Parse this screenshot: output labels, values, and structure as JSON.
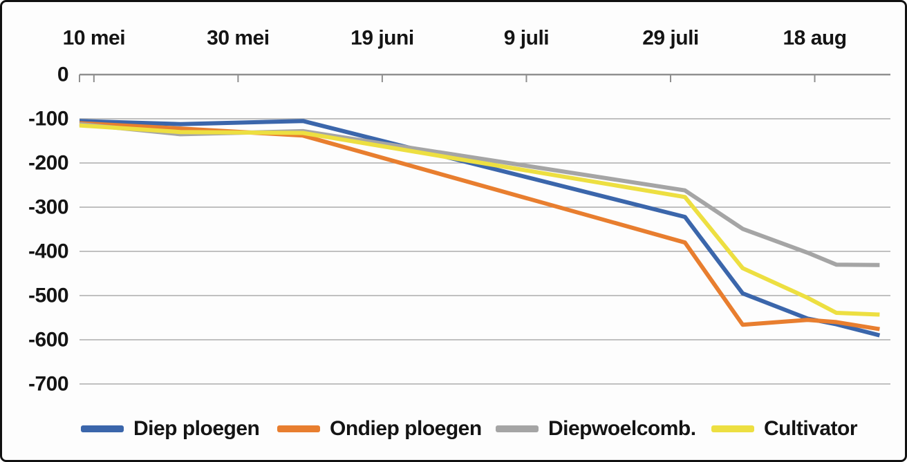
{
  "chart_data": {
    "type": "line",
    "title": "",
    "x_axis": {
      "position": "top",
      "unit": "date",
      "day_zero_label": "10 mei",
      "tick_labels": [
        "10 mei",
        "30 mei",
        "19 juni",
        "9 juli",
        "29 juli",
        "18 aug"
      ],
      "tick_days": [
        0,
        20,
        40,
        60,
        80,
        100
      ],
      "range_days": [
        -2,
        110.5
      ]
    },
    "y_axis": {
      "tick_labels": [
        "0",
        "-100",
        "-200",
        "-300",
        "-400",
        "-500",
        "-600",
        "-700"
      ],
      "tick_values": [
        0,
        -100,
        -200,
        -300,
        -400,
        -500,
        -600,
        -700
      ],
      "range": [
        -700,
        0
      ],
      "gridlines": true
    },
    "series": [
      {
        "name": "Diep ploegen",
        "color": "#3B66AB",
        "points_day_value": [
          [
            -2,
            -105
          ],
          [
            12,
            -112
          ],
          [
            29,
            -105
          ],
          [
            82,
            -322
          ],
          [
            90,
            -495
          ],
          [
            99,
            -552
          ],
          [
            103,
            -565
          ],
          [
            109,
            -590
          ]
        ]
      },
      {
        "name": "Ondiep ploegen",
        "color": "#E87E2F",
        "points_day_value": [
          [
            -2,
            -110
          ],
          [
            12,
            -122
          ],
          [
            29,
            -138
          ],
          [
            82,
            -380
          ],
          [
            90,
            -566
          ],
          [
            99,
            -555
          ],
          [
            103,
            -560
          ],
          [
            109,
            -576
          ]
        ]
      },
      {
        "name": "Diepwoelcomb.",
        "color": "#A5A5A5",
        "points_day_value": [
          [
            -2,
            -112
          ],
          [
            12,
            -135
          ],
          [
            29,
            -128
          ],
          [
            82,
            -262
          ],
          [
            90,
            -349
          ],
          [
            99,
            -403
          ],
          [
            103,
            -430
          ],
          [
            109,
            -431
          ]
        ]
      },
      {
        "name": "Cultivator",
        "color": "#EDDF41",
        "points_day_value": [
          [
            -2,
            -115
          ],
          [
            12,
            -130
          ],
          [
            29,
            -132
          ],
          [
            82,
            -277
          ],
          [
            90,
            -438
          ],
          [
            99,
            -505
          ],
          [
            103,
            -539
          ],
          [
            109,
            -543
          ]
        ]
      }
    ],
    "legend_position": "bottom",
    "colors": {
      "gridline": "#ABABAB",
      "zero_axis": "#8F8F8F",
      "text": "#141414",
      "background": "#FDFDFD",
      "frame_border": "#111111"
    }
  }
}
